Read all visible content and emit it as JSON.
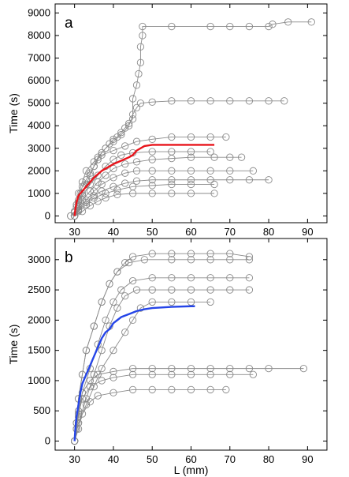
{
  "chart_data": [
    {
      "type": "scatter",
      "panel_label": "a",
      "xlabel": "",
      "ylabel": "Time (s)",
      "xlim": [
        25,
        95
      ],
      "ylim": [
        -300,
        9400
      ],
      "xticks": [
        30,
        40,
        50,
        60,
        70,
        80,
        90
      ],
      "yticks": [
        0,
        1000,
        2000,
        3000,
        4000,
        5000,
        6000,
        7000,
        8000,
        9000
      ],
      "grid": false,
      "legend": "none",
      "colors": {
        "trajectories": "#8a8a8a",
        "mean": "#e8141b"
      },
      "trajectories": [
        [
          [
            29,
            0
          ],
          [
            30,
            150
          ],
          [
            30.5,
            400
          ],
          [
            31,
            700
          ],
          [
            31.5,
            1000
          ],
          [
            32,
            1300
          ],
          [
            33,
            1600
          ],
          [
            34,
            1900
          ],
          [
            35,
            2200
          ],
          [
            36,
            2500
          ],
          [
            37,
            2800
          ],
          [
            38,
            3000
          ],
          [
            39,
            3200
          ],
          [
            40,
            3400
          ],
          [
            41,
            3500
          ],
          [
            42,
            3700
          ],
          [
            43,
            3900
          ],
          [
            44,
            4100
          ],
          [
            45,
            4300
          ],
          [
            45,
            5200
          ],
          [
            46,
            5800
          ],
          [
            46.5,
            6300
          ],
          [
            47,
            6800
          ],
          [
            47,
            7500
          ],
          [
            47.5,
            8000
          ],
          [
            47.5,
            8400
          ],
          [
            55,
            8400
          ],
          [
            65,
            8400
          ],
          [
            70,
            8400
          ],
          [
            75,
            8400
          ],
          [
            80,
            8400
          ],
          [
            81,
            8500
          ],
          [
            85,
            8600
          ],
          [
            91,
            8600
          ]
        ],
        [
          [
            29,
            0
          ],
          [
            30,
            200
          ],
          [
            31,
            600
          ],
          [
            32,
            1000
          ],
          [
            33,
            1400
          ],
          [
            34,
            1800
          ],
          [
            35,
            2200
          ],
          [
            36,
            2600
          ],
          [
            38,
            3000
          ],
          [
            40,
            3300
          ],
          [
            42,
            3600
          ],
          [
            44,
            4000
          ],
          [
            45,
            4500
          ],
          [
            46,
            4800
          ],
          [
            47,
            5000
          ],
          [
            50,
            5050
          ],
          [
            55,
            5100
          ],
          [
            60,
            5100
          ],
          [
            65,
            5100
          ],
          [
            70,
            5100
          ],
          [
            75,
            5100
          ],
          [
            80,
            5100
          ],
          [
            84,
            5100
          ]
        ],
        [
          [
            30,
            0
          ],
          [
            30.5,
            500
          ],
          [
            31,
            1000
          ],
          [
            32,
            1500
          ],
          [
            33,
            2000
          ],
          [
            35,
            2400
          ],
          [
            37,
            2700
          ],
          [
            40,
            2900
          ],
          [
            43,
            3100
          ],
          [
            46,
            3300
          ],
          [
            50,
            3400
          ],
          [
            55,
            3500
          ],
          [
            60,
            3500
          ],
          [
            65,
            3500
          ],
          [
            69,
            3500
          ]
        ],
        [
          [
            30,
            0
          ],
          [
            31,
            400
          ],
          [
            32,
            900
          ],
          [
            34,
            1400
          ],
          [
            36,
            1800
          ],
          [
            38,
            2200
          ],
          [
            40,
            2500
          ],
          [
            42,
            2700
          ],
          [
            45,
            2800
          ],
          [
            50,
            2850
          ],
          [
            55,
            2850
          ],
          [
            60,
            2850
          ],
          [
            65,
            2850
          ]
        ],
        [
          [
            30,
            0
          ],
          [
            31,
            300
          ],
          [
            32,
            700
          ],
          [
            34,
            1100
          ],
          [
            36,
            1500
          ],
          [
            38,
            1800
          ],
          [
            40,
            2100
          ],
          [
            43,
            2300
          ],
          [
            46,
            2400
          ],
          [
            50,
            2500
          ],
          [
            55,
            2550
          ],
          [
            60,
            2600
          ],
          [
            66,
            2600
          ],
          [
            70,
            2600
          ],
          [
            73,
            2600
          ]
        ],
        [
          [
            30,
            0
          ],
          [
            31,
            300
          ],
          [
            33,
            700
          ],
          [
            35,
            1100
          ],
          [
            37,
            1400
          ],
          [
            40,
            1700
          ],
          [
            43,
            1900
          ],
          [
            46,
            2000
          ],
          [
            50,
            2000
          ],
          [
            55,
            2000
          ],
          [
            60,
            2000
          ],
          [
            65,
            2000
          ],
          [
            70,
            2000
          ],
          [
            76,
            2000
          ]
        ],
        [
          [
            30,
            0
          ],
          [
            31,
            250
          ],
          [
            33,
            600
          ],
          [
            35,
            900
          ],
          [
            37,
            1100
          ],
          [
            40,
            1300
          ],
          [
            43,
            1450
          ],
          [
            46,
            1550
          ],
          [
            50,
            1600
          ],
          [
            55,
            1600
          ],
          [
            60,
            1600
          ],
          [
            65,
            1600
          ],
          [
            70,
            1600
          ],
          [
            75,
            1600
          ],
          [
            80,
            1600
          ]
        ],
        [
          [
            30,
            0
          ],
          [
            31,
            200
          ],
          [
            33,
            500
          ],
          [
            35,
            800
          ],
          [
            38,
            1000
          ],
          [
            41,
            1150
          ],
          [
            45,
            1300
          ],
          [
            50,
            1350
          ],
          [
            55,
            1400
          ],
          [
            60,
            1400
          ],
          [
            66,
            1400
          ]
        ],
        [
          [
            30,
            0
          ],
          [
            32,
            200
          ],
          [
            34,
            450
          ],
          [
            36,
            650
          ],
          [
            38,
            800
          ],
          [
            41,
            950
          ],
          [
            45,
            1000
          ],
          [
            50,
            1000
          ],
          [
            55,
            1000
          ],
          [
            60,
            1000
          ],
          [
            66,
            1000
          ]
        ]
      ],
      "mean_curve": [
        [
          30,
          0
        ],
        [
          30.2,
          300
        ],
        [
          30.5,
          600
        ],
        [
          31,
          900
        ],
        [
          32,
          1100
        ],
        [
          33,
          1300
        ],
        [
          34,
          1500
        ],
        [
          35,
          1700
        ],
        [
          36,
          1850
        ],
        [
          37,
          2000
        ],
        [
          38,
          2100
        ],
        [
          39,
          2200
        ],
        [
          40,
          2300
        ],
        [
          42,
          2450
        ],
        [
          44,
          2600
        ],
        [
          45,
          2700
        ],
        [
          46,
          2900
        ],
        [
          47,
          3000
        ],
        [
          48,
          3100
        ],
        [
          50,
          3150
        ],
        [
          55,
          3150
        ],
        [
          60,
          3150
        ],
        [
          66,
          3150
        ]
      ]
    },
    {
      "type": "scatter",
      "panel_label": "b",
      "xlabel": "L (mm)",
      "ylabel": "Time (s)",
      "xlim": [
        25,
        95
      ],
      "ylim": [
        -150,
        3350
      ],
      "xticks": [
        30,
        40,
        50,
        60,
        70,
        80,
        90
      ],
      "yticks": [
        0,
        500,
        1000,
        1500,
        2000,
        2500,
        3000
      ],
      "grid": false,
      "legend": "none",
      "colors": {
        "trajectories": "#8a8a8a",
        "mean": "#2545e8"
      },
      "trajectories": [
        [
          [
            30,
            0
          ],
          [
            30.5,
            300
          ],
          [
            31,
            700
          ],
          [
            32,
            1100
          ],
          [
            33,
            1500
          ],
          [
            35,
            1900
          ],
          [
            37,
            2300
          ],
          [
            39,
            2600
          ],
          [
            41,
            2800
          ],
          [
            43,
            2950
          ],
          [
            45,
            3050
          ],
          [
            50,
            3100
          ],
          [
            55,
            3100
          ],
          [
            60,
            3100
          ],
          [
            65,
            3100
          ],
          [
            70,
            3100
          ],
          [
            75,
            3050
          ]
        ],
        [
          [
            30,
            0
          ],
          [
            30.5,
            300
          ],
          [
            31,
            700
          ],
          [
            32,
            1100
          ],
          [
            33,
            1500
          ],
          [
            35,
            1900
          ],
          [
            37,
            2300
          ],
          [
            39,
            2600
          ],
          [
            41,
            2800
          ],
          [
            44,
            2950
          ],
          [
            48,
            3000
          ],
          [
            55,
            3000
          ],
          [
            60,
            3000
          ],
          [
            65,
            3000
          ],
          [
            70,
            3000
          ],
          [
            75,
            3000
          ]
        ],
        [
          [
            30,
            0
          ],
          [
            31,
            400
          ],
          [
            32,
            800
          ],
          [
            34,
            1200
          ],
          [
            36,
            1600
          ],
          [
            38,
            2000
          ],
          [
            40,
            2300
          ],
          [
            42,
            2500
          ],
          [
            45,
            2650
          ],
          [
            50,
            2700
          ],
          [
            55,
            2700
          ],
          [
            60,
            2700
          ],
          [
            65,
            2700
          ],
          [
            70,
            2700
          ],
          [
            75,
            2700
          ]
        ],
        [
          [
            30,
            0
          ],
          [
            31,
            300
          ],
          [
            33,
            700
          ],
          [
            35,
            1100
          ],
          [
            37,
            1500
          ],
          [
            39,
            1900
          ],
          [
            41,
            2200
          ],
          [
            43,
            2400
          ],
          [
            46,
            2500
          ],
          [
            50,
            2500
          ],
          [
            55,
            2500
          ],
          [
            60,
            2500
          ],
          [
            65,
            2500
          ],
          [
            70,
            2500
          ],
          [
            75,
            2500
          ]
        ],
        [
          [
            30,
            0
          ],
          [
            31,
            300
          ],
          [
            33,
            600
          ],
          [
            35,
            900
          ],
          [
            37,
            1200
          ],
          [
            40,
            1500
          ],
          [
            43,
            1800
          ],
          [
            45,
            2000
          ],
          [
            47,
            2200
          ],
          [
            50,
            2300
          ],
          [
            55,
            2300
          ],
          [
            60,
            2300
          ],
          [
            65,
            2300
          ]
        ],
        [
          [
            30,
            0
          ],
          [
            30.5,
            200
          ],
          [
            31,
            500
          ],
          [
            32,
            800
          ],
          [
            34,
            1000
          ],
          [
            36,
            1100
          ],
          [
            40,
            1150
          ],
          [
            45,
            1200
          ],
          [
            50,
            1200
          ],
          [
            55,
            1200
          ],
          [
            60,
            1200
          ],
          [
            65,
            1200
          ],
          [
            70,
            1200
          ],
          [
            75,
            1200
          ],
          [
            80,
            1200
          ],
          [
            89,
            1200
          ]
        ],
        [
          [
            30,
            0
          ],
          [
            30.5,
            200
          ],
          [
            31,
            450
          ],
          [
            32,
            700
          ],
          [
            34,
            900
          ],
          [
            37,
            1000
          ],
          [
            40,
            1050
          ],
          [
            45,
            1100
          ],
          [
            50,
            1100
          ],
          [
            55,
            1100
          ],
          [
            60,
            1100
          ],
          [
            65,
            1100
          ],
          [
            70,
            1100
          ],
          [
            76,
            1100
          ]
        ],
        [
          [
            30,
            0
          ],
          [
            31,
            200
          ],
          [
            32,
            450
          ],
          [
            34,
            650
          ],
          [
            36,
            750
          ],
          [
            40,
            800
          ],
          [
            45,
            850
          ],
          [
            50,
            850
          ],
          [
            55,
            850
          ],
          [
            60,
            850
          ],
          [
            65,
            850
          ],
          [
            69,
            850
          ]
        ]
      ],
      "mean_curve": [
        [
          30,
          0
        ],
        [
          30.2,
          200
        ],
        [
          30.5,
          400
        ],
        [
          31,
          600
        ],
        [
          31.5,
          800
        ],
        [
          32,
          950
        ],
        [
          33,
          1100
        ],
        [
          34,
          1250
        ],
        [
          35,
          1400
        ],
        [
          36,
          1550
        ],
        [
          37,
          1700
        ],
        [
          38,
          1800
        ],
        [
          39,
          1850
        ],
        [
          40,
          1950
        ],
        [
          41,
          2000
        ],
        [
          42,
          2050
        ],
        [
          44,
          2100
        ],
        [
          46,
          2150
        ],
        [
          48,
          2180
        ],
        [
          50,
          2200
        ],
        [
          55,
          2220
        ],
        [
          60,
          2230
        ],
        [
          61,
          2230
        ]
      ]
    }
  ]
}
